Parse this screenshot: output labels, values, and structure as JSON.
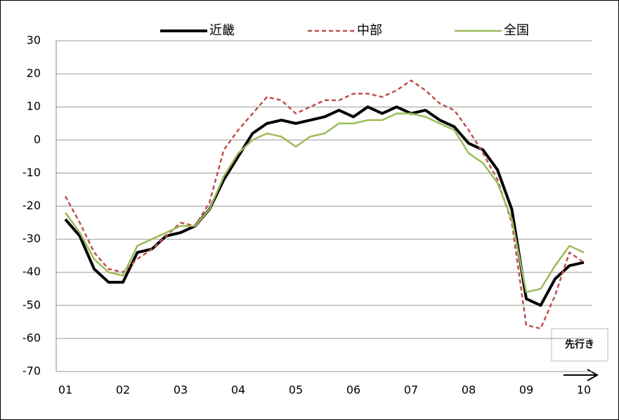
{
  "chart_data": {
    "type": "line",
    "categories": [
      "01",
      null,
      null,
      null,
      "02",
      null,
      null,
      null,
      "03",
      null,
      null,
      null,
      "04",
      null,
      null,
      null,
      "05",
      null,
      null,
      null,
      "06",
      null,
      null,
      null,
      "07",
      null,
      null,
      null,
      "08",
      null,
      null,
      null,
      "09",
      null,
      null,
      null,
      "10"
    ],
    "series": [
      {
        "name": "近畿",
        "color": "#000000",
        "dash": "solid",
        "values": [
          -24,
          -29,
          -39,
          -43,
          -43,
          -34,
          -33,
          -29,
          -28,
          -26,
          -21,
          -12,
          -5,
          2,
          5,
          6,
          5,
          6,
          7,
          9,
          7,
          10,
          8,
          10,
          8,
          9,
          6,
          4,
          -1,
          -3,
          -9,
          -21,
          -48,
          -50,
          -42,
          -38,
          -37
        ]
      },
      {
        "name": "中部",
        "color": "#c0504d",
        "dash": "dashed",
        "values": [
          -17,
          -25,
          -34,
          -39,
          -40,
          -36,
          -33,
          -29,
          -25,
          -26,
          -19,
          -3,
          3,
          8,
          13,
          12,
          8,
          10,
          12,
          12,
          14,
          14,
          13,
          15,
          18,
          15,
          11,
          9,
          3,
          -4,
          -12,
          -25,
          -56,
          -57,
          -47,
          -34,
          -37
        ]
      },
      {
        "name": "全国",
        "color": "#9bbb59",
        "dash": "solid",
        "values": [
          -22,
          -28,
          -36,
          -40,
          -41,
          -32,
          -30,
          -28,
          -26,
          -26,
          -21,
          -11,
          -4,
          0,
          2,
          1,
          -2,
          1,
          2,
          5,
          5,
          6,
          6,
          8,
          8,
          7,
          5,
          3,
          -4,
          -7,
          -13,
          -24,
          -46,
          -45,
          -38,
          -32,
          -34
        ]
      }
    ],
    "ylim": [
      -70,
      30
    ],
    "yticks": [
      -70,
      -60,
      -50,
      -40,
      -30,
      -20,
      -10,
      0,
      10,
      20,
      30
    ],
    "grid": true,
    "legend": "top",
    "annotation": "先行き"
  }
}
